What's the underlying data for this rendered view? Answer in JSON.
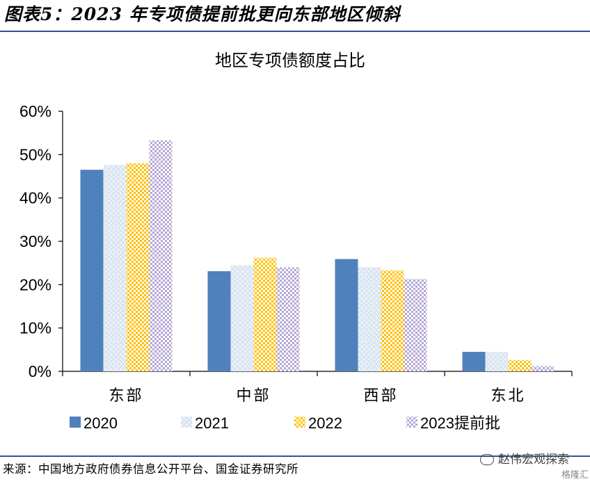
{
  "figure": {
    "title": "图表5：2023 年专项债提前批更向东部地区倾斜",
    "source": "来源：中国地方政府债券信息公开平台、国金证券研究所",
    "watermark": "赵伟宏观探索",
    "watermark_sub": "格隆汇",
    "accent_color": "#2f5496"
  },
  "chart_data": {
    "type": "bar",
    "title": "地区专项债额度占比",
    "xlabel": "",
    "ylabel": "",
    "categories": [
      "东部",
      "中部",
      "西部",
      "东北"
    ],
    "ylim": [
      0,
      60
    ],
    "yticks": [
      "0%",
      "10%",
      "20%",
      "30%",
      "40%",
      "50%",
      "60%"
    ],
    "y_unit": "%",
    "grid": false,
    "legend_position": "bottom",
    "series": [
      {
        "name": "2020",
        "values": [
          46.5,
          23.1,
          25.9,
          4.5
        ],
        "color": "#4f81bd",
        "pattern": "solid"
      },
      {
        "name": "2021",
        "values": [
          47.6,
          24.5,
          24.0,
          4.5
        ],
        "color": "#dce6f2",
        "pattern": "dots"
      },
      {
        "name": "2022",
        "values": [
          48.0,
          26.2,
          23.3,
          2.6
        ],
        "color": "#ffc000",
        "pattern": "checker"
      },
      {
        "name": "2023提前批",
        "values": [
          53.3,
          24.0,
          21.3,
          1.2
        ],
        "color": "#b4a7d6",
        "pattern": "checker-light"
      }
    ]
  }
}
